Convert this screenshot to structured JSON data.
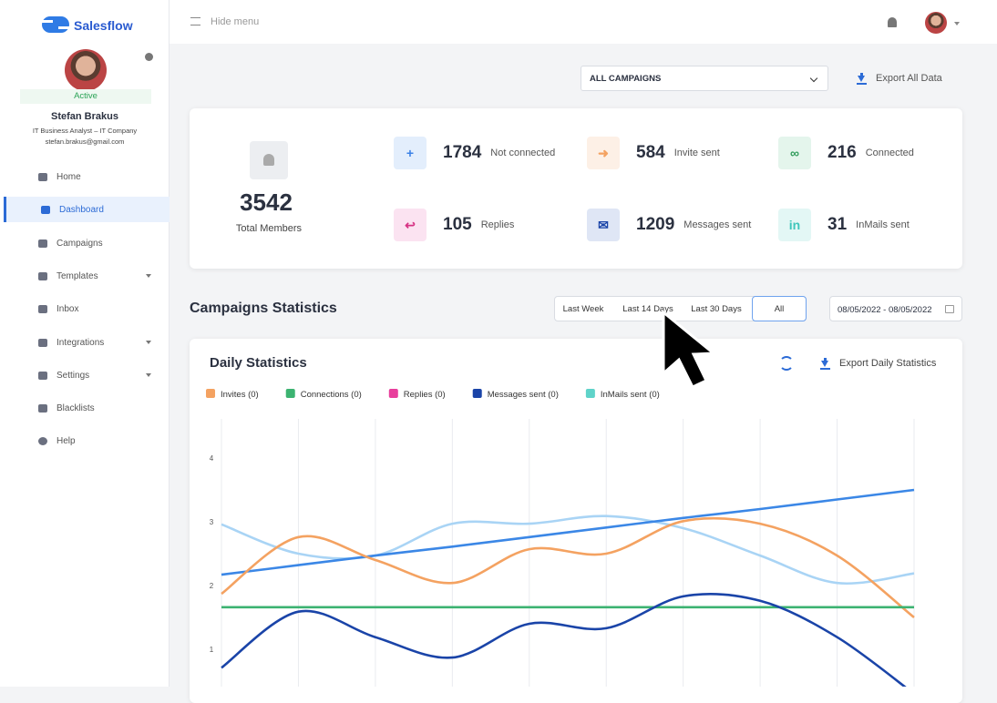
{
  "sidebar": {
    "logo": "Salesflow",
    "status": "Active",
    "name": "Stefan Brakus",
    "role": "IT Business Analyst – IT Company",
    "email": "stefan.brakus@gmail.com",
    "nav": [
      "Home",
      "Dashboard",
      "Campaigns",
      "Templates",
      "Inbox",
      "Integrations",
      "Settings",
      "Blacklists",
      "Help"
    ]
  },
  "topbar": {
    "menu": "Hide menu"
  },
  "filter": {
    "campaign": "ALL CAMPAIGNS",
    "export": "Export All Data"
  },
  "stats": {
    "total": {
      "value": "3542",
      "label": "Total Members"
    },
    "items": [
      {
        "value": "1784",
        "label": "Not connected"
      },
      {
        "value": "584",
        "label": "Invite sent"
      },
      {
        "value": "216",
        "label": "Connected"
      },
      {
        "value": "105",
        "label": "Replies"
      },
      {
        "value": "1209",
        "label": "Messages sent"
      },
      {
        "value": "31",
        "label": "InMails sent"
      }
    ]
  },
  "section": {
    "title": "Campaigns Statistics",
    "ranges": [
      "Last Week",
      "Last 14 Days",
      "Last 30 Days",
      "All"
    ],
    "date": "08/05/2022 - 08/05/2022"
  },
  "chart": {
    "type": "line",
    "title": "Daily Statistics",
    "export": "Export Daily Statistics",
    "categories": [
      null,
      null,
      null,
      null,
      null,
      null,
      null,
      null,
      null,
      null
    ],
    "ylim": [
      0,
      4.5
    ],
    "yticks": [
      1,
      2,
      3,
      4
    ],
    "xgrid": true,
    "series": [
      {
        "name": "Invites (0)",
        "color": "#f4a261",
        "values": [
          1.87,
          2.76,
          2.4,
          2.04,
          2.57,
          2.5,
          3.01,
          2.97,
          2.47,
          1.5
        ]
      },
      {
        "name": "Connections (0)",
        "color": "#3cb371",
        "values": [
          1.66,
          1.66,
          1.66,
          1.66,
          1.66,
          1.66,
          1.66,
          1.66,
          1.66,
          1.66
        ]
      },
      {
        "name": "Replies (0)",
        "color": "#e83e9c",
        "values": [
          null,
          null,
          null,
          null,
          null,
          null,
          null,
          null,
          null,
          null
        ]
      },
      {
        "name": "Messages sent (0)",
        "color": "#1a44a8",
        "values": [
          0.71,
          1.59,
          1.19,
          0.87,
          1.4,
          1.33,
          1.83,
          1.76,
          1.19,
          0.3
        ]
      },
      {
        "name": "InMails sent (0)",
        "color": "#5fd3c9",
        "values": [
          null,
          null,
          null,
          null,
          null,
          null,
          null,
          null,
          null,
          null
        ]
      },
      {
        "color": "#a9d4f5",
        "values": [
          2.96,
          2.5,
          2.47,
          2.97,
          2.97,
          3.09,
          2.9,
          2.47,
          2.04,
          2.19
        ]
      },
      {
        "color": "#3b87e6",
        "values": [
          2.17,
          2.32,
          2.47,
          2.61,
          2.76,
          2.91,
          3.06,
          3.2,
          3.35,
          3.5
        ]
      }
    ]
  }
}
